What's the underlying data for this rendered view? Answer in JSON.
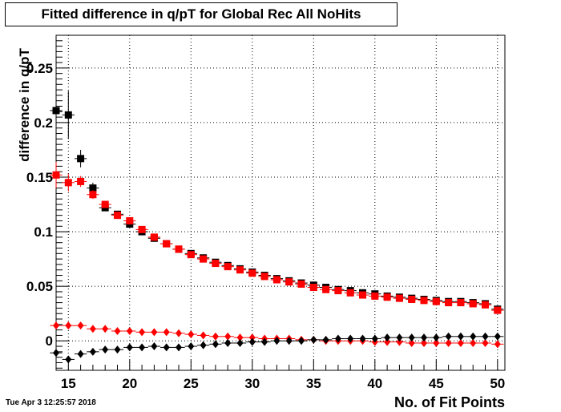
{
  "chart_data": {
    "type": "scatter",
    "title": "Fitted difference in q/pT  for Global Rec All NoHits",
    "xlabel": "No. of Fit Points",
    "ylabel": "difference in q/pT",
    "xlim": [
      14,
      50.6
    ],
    "ylim": [
      -0.027,
      0.28
    ],
    "x_ticks": [
      15,
      20,
      25,
      30,
      35,
      40,
      45,
      50
    ],
    "x_tick_labels": [
      "15",
      "20",
      "25",
      "30",
      "35",
      "40",
      "45",
      "50"
    ],
    "y_ticks": [
      0,
      0.05,
      0.1,
      0.15,
      0.2,
      0.25
    ],
    "y_tick_labels": [
      "0",
      "0.05",
      "0.1",
      "0.15",
      "0.2",
      "0.25"
    ],
    "grid": true,
    "series": [
      {
        "marker": "square",
        "color": "#000000",
        "x": [
          14,
          15,
          16,
          17,
          18,
          19,
          20,
          21,
          22,
          23,
          24,
          25,
          26,
          27,
          28,
          29,
          30,
          31,
          32,
          33,
          34,
          35,
          36,
          37,
          38,
          39,
          40,
          41,
          42,
          43,
          44,
          45,
          46,
          47,
          48,
          49,
          50
        ],
        "y": [
          0.211,
          0.207,
          0.167,
          0.14,
          0.122,
          0.116,
          0.107,
          0.1,
          0.094,
          0.089,
          0.084,
          0.08,
          0.076,
          0.072,
          0.069,
          0.066,
          0.063,
          0.06,
          0.057,
          0.055,
          0.053,
          0.051,
          0.049,
          0.047,
          0.046,
          0.044,
          0.043,
          0.041,
          0.04,
          0.039,
          0.038,
          0.037,
          0.036,
          0.036,
          0.035,
          0.034,
          0.029
        ],
        "err": [
          0.03,
          0.022,
          0.008,
          0.005,
          0.003,
          0.002,
          0.002,
          0.002,
          0.001,
          0.001,
          0.001,
          0.001,
          0.001,
          0.001,
          0.001,
          0.001,
          0.001,
          0.001,
          0.001,
          0.001,
          0.001,
          0.001,
          0.001,
          0.001,
          0.001,
          0.001,
          0.001,
          0.001,
          0.001,
          0.001,
          0.001,
          0.001,
          0.001,
          0.001,
          0.001,
          0.001,
          0.001
        ]
      },
      {
        "marker": "square",
        "color": "#ff0000",
        "x": [
          14,
          15,
          16,
          17,
          18,
          19,
          20,
          21,
          22,
          23,
          24,
          25,
          26,
          27,
          28,
          29,
          30,
          31,
          32,
          33,
          34,
          35,
          36,
          37,
          38,
          39,
          40,
          41,
          42,
          43,
          44,
          45,
          46,
          47,
          48,
          49,
          50
        ],
        "y": [
          0.152,
          0.145,
          0.146,
          0.134,
          0.125,
          0.115,
          0.11,
          0.102,
          0.095,
          0.089,
          0.084,
          0.079,
          0.075,
          0.071,
          0.068,
          0.065,
          0.062,
          0.059,
          0.056,
          0.054,
          0.052,
          0.049,
          0.047,
          0.046,
          0.044,
          0.042,
          0.041,
          0.04,
          0.039,
          0.038,
          0.037,
          0.036,
          0.035,
          0.035,
          0.034,
          0.033,
          0.028
        ],
        "err": [
          0.012,
          0.008,
          0.005,
          0.004,
          0.003,
          0.002,
          0.002,
          0.002,
          0.001,
          0.001,
          0.001,
          0.001,
          0.001,
          0.001,
          0.001,
          0.001,
          0.001,
          0.001,
          0.001,
          0.001,
          0.001,
          0.001,
          0.001,
          0.001,
          0.001,
          0.001,
          0.001,
          0.001,
          0.001,
          0.001,
          0.001,
          0.001,
          0.001,
          0.001,
          0.001,
          0.001,
          0.001
        ]
      },
      {
        "marker": "diamond",
        "color": "#ff0000",
        "x": [
          14,
          15,
          16,
          17,
          18,
          19,
          20,
          21,
          22,
          23,
          24,
          25,
          26,
          27,
          28,
          29,
          30,
          31,
          32,
          33,
          34,
          35,
          36,
          37,
          38,
          39,
          40,
          41,
          42,
          43,
          44,
          45,
          46,
          47,
          48,
          49,
          50
        ],
        "y": [
          0.014,
          0.014,
          0.014,
          0.011,
          0.011,
          0.009,
          0.009,
          0.008,
          0.008,
          0.008,
          0.007,
          0.006,
          0.005,
          0.004,
          0.004,
          0.003,
          0.003,
          0.002,
          0.002,
          0.002,
          0.001,
          0.001,
          0.0,
          0.0,
          0.0,
          0.0,
          -0.001,
          -0.001,
          -0.001,
          -0.002,
          -0.002,
          -0.002,
          -0.002,
          -0.002,
          -0.002,
          -0.002,
          -0.003
        ],
        "err": [
          0.002,
          0.001,
          0.001,
          0.001,
          0.001,
          0.001,
          0.001,
          0.001,
          0.001,
          0.001,
          0.001,
          0.001,
          0.001,
          0.001,
          0.001,
          0.001,
          0.001,
          0.001,
          0.001,
          0.001,
          0.001,
          0.001,
          0.001,
          0.001,
          0.001,
          0.001,
          0.001,
          0.001,
          0.001,
          0.001,
          0.001,
          0.001,
          0.001,
          0.001,
          0.001,
          0.001,
          0.001
        ]
      },
      {
        "marker": "diamond",
        "color": "#000000",
        "x": [
          14,
          15,
          16,
          17,
          18,
          19,
          20,
          21,
          22,
          23,
          24,
          25,
          26,
          27,
          28,
          29,
          30,
          31,
          32,
          33,
          34,
          35,
          36,
          37,
          38,
          39,
          40,
          41,
          42,
          43,
          44,
          45,
          46,
          47,
          48,
          49,
          50
        ],
        "y": [
          -0.011,
          -0.017,
          -0.012,
          -0.01,
          -0.008,
          -0.008,
          -0.006,
          -0.006,
          -0.005,
          -0.006,
          -0.006,
          -0.005,
          -0.004,
          -0.003,
          -0.002,
          -0.002,
          -0.001,
          -0.001,
          0.0,
          0.0,
          0.0,
          0.001,
          0.001,
          0.002,
          0.002,
          0.002,
          0.002,
          0.003,
          0.003,
          0.003,
          0.003,
          0.003,
          0.004,
          0.004,
          0.004,
          0.004,
          0.004
        ],
        "err": [
          0.002,
          0.001,
          0.001,
          0.001,
          0.001,
          0.001,
          0.001,
          0.001,
          0.001,
          0.001,
          0.001,
          0.001,
          0.001,
          0.001,
          0.001,
          0.001,
          0.001,
          0.001,
          0.001,
          0.001,
          0.001,
          0.001,
          0.001,
          0.001,
          0.001,
          0.001,
          0.001,
          0.001,
          0.001,
          0.001,
          0.001,
          0.001,
          0.001,
          0.001,
          0.001,
          0.001,
          0.001
        ]
      }
    ]
  },
  "footer": {
    "timestamp": "Tue Apr  3 12:25:57 2018"
  }
}
